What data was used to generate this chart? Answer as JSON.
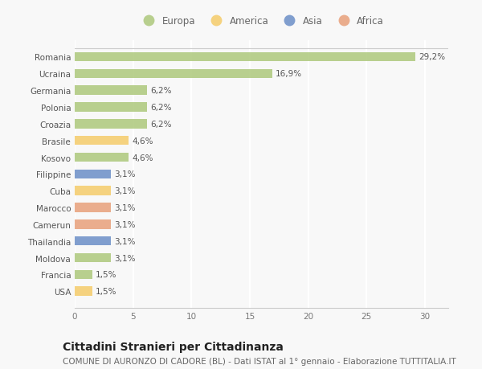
{
  "categories": [
    "Romania",
    "Ucraina",
    "Germania",
    "Polonia",
    "Croazia",
    "Brasile",
    "Kosovo",
    "Filippine",
    "Cuba",
    "Marocco",
    "Camerun",
    "Thailandia",
    "Moldova",
    "Francia",
    "USA"
  ],
  "values": [
    29.2,
    16.9,
    6.2,
    6.2,
    6.2,
    4.6,
    4.6,
    3.1,
    3.1,
    3.1,
    3.1,
    3.1,
    3.1,
    1.5,
    1.5
  ],
  "labels": [
    "29,2%",
    "16,9%",
    "6,2%",
    "6,2%",
    "6,2%",
    "4,6%",
    "4,6%",
    "3,1%",
    "3,1%",
    "3,1%",
    "3,1%",
    "3,1%",
    "3,1%",
    "1,5%",
    "1,5%"
  ],
  "colors": [
    "#adc87c",
    "#adc87c",
    "#adc87c",
    "#adc87c",
    "#adc87c",
    "#f5cc6a",
    "#adc87c",
    "#6b8ec7",
    "#f5cc6a",
    "#e8a07a",
    "#e8a07a",
    "#6b8ec7",
    "#adc87c",
    "#adc87c",
    "#f5cc6a"
  ],
  "legend_labels": [
    "Europa",
    "America",
    "Asia",
    "Africa"
  ],
  "legend_colors": [
    "#adc87c",
    "#f5cc6a",
    "#6b8ec7",
    "#e8a07a"
  ],
  "xlim": [
    0,
    32
  ],
  "xticks": [
    0,
    5,
    10,
    15,
    20,
    25,
    30
  ],
  "title": "Cittadini Stranieri per Cittadinanza",
  "subtitle": "COMUNE DI AURONZO DI CADORE (BL) - Dati ISTAT al 1° gennaio - Elaborazione TUTTITALIA.IT",
  "background_color": "#f8f8f8",
  "grid_color": "#ffffff",
  "bar_height": 0.55,
  "title_fontsize": 10,
  "subtitle_fontsize": 7.5,
  "label_fontsize": 7.5,
  "legend_fontsize": 8.5,
  "tick_fontsize": 7.5
}
